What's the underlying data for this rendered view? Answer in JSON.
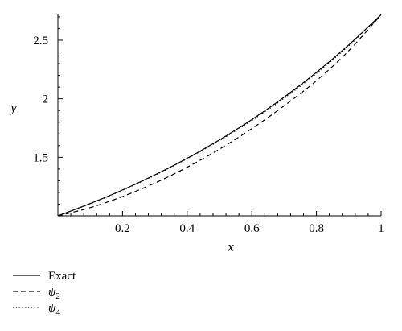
{
  "chart_data": {
    "type": "line",
    "xlabel": "x",
    "ylabel": "y",
    "xlim": [
      0,
      1
    ],
    "ylim": [
      1,
      2.72
    ],
    "x_ticks": [
      "0.2",
      "0.4",
      "0.6",
      "0.8",
      "1"
    ],
    "x_tick_values": [
      0.2,
      0.4,
      0.6,
      0.8,
      1.0
    ],
    "y_ticks": [
      "1.5",
      "2",
      "2.5"
    ],
    "y_tick_values": [
      1.5,
      2.0,
      2.5
    ],
    "grid": false,
    "legend_position": "bottom-left",
    "x": [
      0,
      0.1,
      0.2,
      0.3,
      0.4,
      0.5,
      0.6,
      0.7,
      0.8,
      0.9,
      1.0
    ],
    "series": [
      {
        "name": "Exact",
        "style": "solid",
        "values": [
          1.0,
          1.105,
          1.221,
          1.35,
          1.492,
          1.649,
          1.822,
          2.014,
          2.226,
          2.46,
          2.718
        ]
      },
      {
        "name": "ψ",
        "subscript": "2",
        "style": "dashed",
        "values": [
          1.0,
          1.07,
          1.165,
          1.28,
          1.415,
          1.57,
          1.745,
          1.94,
          2.155,
          2.41,
          2.718
        ]
      },
      {
        "name": "ψ",
        "subscript": "4",
        "style": "dotted",
        "values": [
          1.0,
          1.104,
          1.219,
          1.347,
          1.488,
          1.643,
          1.815,
          2.005,
          2.217,
          2.453,
          2.718
        ]
      }
    ]
  }
}
